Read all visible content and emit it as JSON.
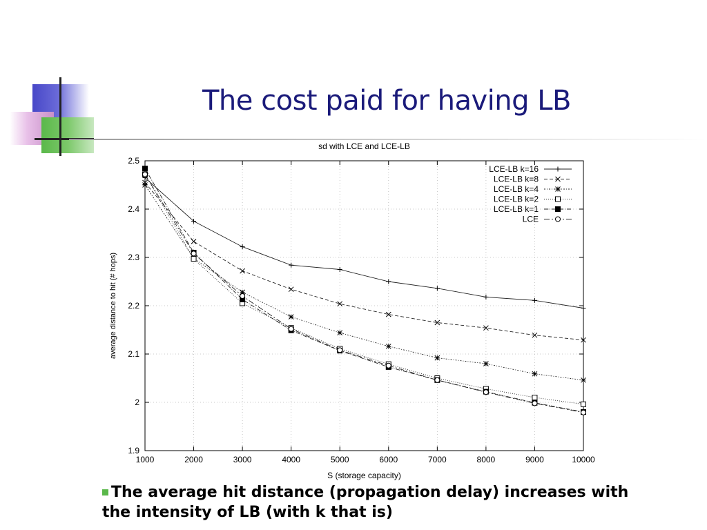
{
  "slide": {
    "title": "The cost paid for having LB",
    "bullet_text": "The average hit distance (propagation delay) increases with the intensity of LB (with k that is)",
    "colors": {
      "title": "#1a1a7a",
      "bullet_marker": "#5ab84a",
      "deco_blue": "#4848c8",
      "deco_green": "#5ab84a",
      "deco_pink": "#c890c8"
    }
  },
  "chart_data": {
    "type": "line",
    "title": "sd with LCE and LCE-LB",
    "xlabel": "S (storage capacity)",
    "ylabel": "average distance to hit (# hops)",
    "x": [
      1000,
      2000,
      3000,
      4000,
      5000,
      6000,
      7000,
      8000,
      9000,
      10000
    ],
    "xlim": [
      1000,
      10000
    ],
    "ylim": [
      1.9,
      2.5
    ],
    "xticks": [
      "1000",
      "2000",
      "3000",
      "4000",
      "5000",
      "6000",
      "7000",
      "8000",
      "9000",
      "10000"
    ],
    "yticks": [
      "1.9",
      "2",
      "2.1",
      "2.2",
      "2.3",
      "2.4",
      "2.5"
    ],
    "grid": true,
    "legend_position": "top-right",
    "series": [
      {
        "name": "LCE-LB k=16",
        "marker": "plus",
        "dash": "solid",
        "values": [
          2.465,
          2.375,
          2.322,
          2.284,
          2.275,
          2.25,
          2.236,
          2.218,
          2.211,
          2.195
        ]
      },
      {
        "name": "LCE-LB k=8",
        "marker": "x",
        "dash": "dashed",
        "values": [
          2.455,
          2.333,
          2.272,
          2.234,
          2.204,
          2.182,
          2.165,
          2.154,
          2.139,
          2.129
        ]
      },
      {
        "name": "LCE-LB k=4",
        "marker": "star",
        "dash": "short-dot",
        "values": [
          2.45,
          2.298,
          2.228,
          2.177,
          2.144,
          2.116,
          2.092,
          2.08,
          2.059,
          2.046
        ]
      },
      {
        "name": "LCE-LB k=2",
        "marker": "open-square",
        "dash": "dotted",
        "values": [
          2.472,
          2.297,
          2.205,
          2.154,
          2.111,
          2.079,
          2.05,
          2.028,
          2.01,
          1.996
        ]
      },
      {
        "name": "LCE-LB k=1",
        "marker": "filled-square",
        "dash": "dash-dot",
        "values": [
          2.484,
          2.31,
          2.213,
          2.149,
          2.107,
          2.073,
          2.046,
          2.022,
          1.999,
          1.98
        ]
      },
      {
        "name": "LCE",
        "marker": "open-circle",
        "dash": "dash-dot-long",
        "values": [
          2.472,
          2.308,
          2.22,
          2.152,
          2.108,
          2.076,
          2.046,
          2.021,
          1.998,
          1.979
        ]
      }
    ]
  }
}
